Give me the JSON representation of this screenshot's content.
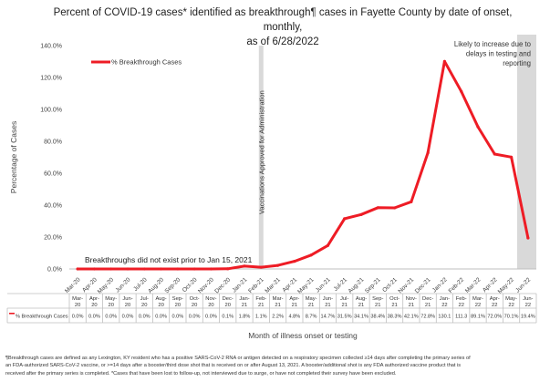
{
  "chart_data": {
    "type": "line",
    "title_lines": [
      "Percent of COVID-19 cases* identified as breakthrough¶ cases in Fayette County by date of onset, monthly,",
      "as of 6/28/2022"
    ],
    "xlabel": "Month of illness onset or testing",
    "ylabel": "Percentage of Cases",
    "ylim": [
      0,
      140
    ],
    "yticks": [
      "0.0%",
      "20.0%",
      "40.0%",
      "60.0%",
      "80.0%",
      "100.0%",
      "120.0%",
      "140.0%"
    ],
    "categories": [
      "Mar-20",
      "Apr-20",
      "May-20",
      "Jun-20",
      "Jul-20",
      "Aug-20",
      "Sep-20",
      "Oct-20",
      "Nov-20",
      "Dec-20",
      "Jan-21",
      "Feb-21",
      "Mar-21",
      "Apr-21",
      "May-21",
      "Jun-21",
      "Jul-21",
      "Aug-21",
      "Sep-21",
      "Oct-21",
      "Nov-21",
      "Dec-21",
      "Jan-22",
      "Feb-22",
      "Mar-22",
      "Apr-22",
      "May-22",
      "Jun-22"
    ],
    "series": [
      {
        "name": "% Breakthrough Cases",
        "color": "#ee1c25",
        "values": [
          0.0,
          0.0,
          0.0,
          0.0,
          0.0,
          0.0,
          0.0,
          0.0,
          0.0,
          0.1,
          1.8,
          1.1,
          2.2,
          4.8,
          8.7,
          14.7,
          31.5,
          34.1,
          38.4,
          38.3,
          42.1,
          72.8,
          130.1,
          111.3,
          89.1,
          72.0,
          70.1,
          19.4
        ],
        "labels": [
          "0.0%",
          "0.0%",
          "0.0%",
          "0.0%",
          "0.0%",
          "0.0%",
          "0.0%",
          "0.0%",
          "0.0%",
          "0.1%",
          "1.8%",
          "1.1%",
          "2.2%",
          "4.8%",
          "8.7%",
          "14.7%",
          "31.5%",
          "34.1%",
          "38.4%",
          "38.3%",
          "42.1%",
          "72.8%",
          "130.1",
          "111.3",
          "89.1%",
          "72.0%",
          "70.1%",
          "19.4%"
        ]
      }
    ],
    "table_header": "% Breakthrough Cases",
    "legend": {
      "label": "% Breakthrough Cases",
      "placement": "top-left"
    },
    "grid": false,
    "annotations": {
      "vaccine": "Vaccinations Approved for Administration",
      "prior": "Breakthroughs did not exist prior to Jan 15, 2021",
      "delay": [
        "Likely to increase due to",
        "delays in testing and",
        "reporting"
      ]
    },
    "colors": {
      "line": "#ee1c25",
      "shade": "#d9d9d9",
      "axis": "#bfbfbf"
    }
  },
  "footnote": [
    "¶Breakthrough cases are defined as any Lexington, KY resident who has a positive SARS-CoV-2 RNA or antigen detected on a respiratory specimen collected ≥14 days after completing the primary series of",
    "an FDA-authorized SARS-CoV-2 vaccine, or >=14 days after a booster/third dose shot that is received on or after August 13, 2021.  A booster/additional shot is any FDA authorized vaccine product that is",
    "received after the primary series is completed.  *Cases that have been lost to follow-up, not interviewed due to surge, or have not completed their survey have been excluded."
  ]
}
